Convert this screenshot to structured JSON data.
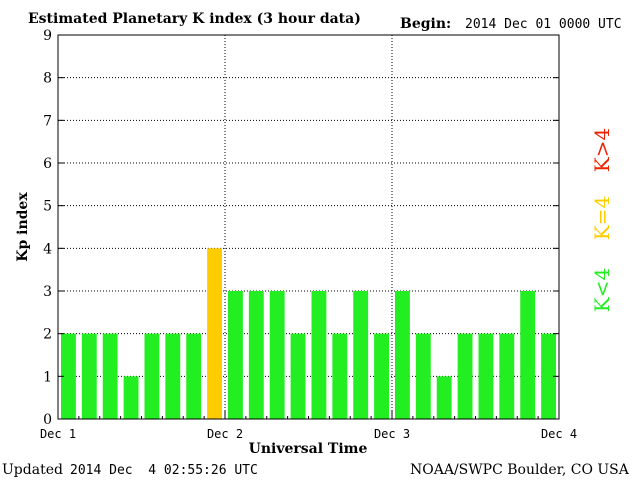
{
  "chart_data": {
    "type": "bar",
    "title": "Estimated Planetary K index (3 hour data)",
    "begin_label": "Begin:",
    "begin_value": "2014 Dec 01 0000 UTC",
    "xlabel": "Universal Time",
    "ylabel": "Kp index",
    "ylim": [
      0,
      9
    ],
    "yticks": [
      "0",
      "1",
      "2",
      "3",
      "4",
      "5",
      "6",
      "7",
      "8",
      "9"
    ],
    "xticks": [
      "Dec 1",
      "Dec 2",
      "Dec 3",
      "Dec 4"
    ],
    "values": [
      2,
      2,
      2,
      1,
      2,
      2,
      2,
      4,
      3,
      3,
      3,
      2,
      3,
      2,
      3,
      2,
      3,
      2,
      1,
      2,
      2,
      2,
      3,
      2
    ],
    "bar_width_hours": 3,
    "grid": true,
    "legend": [
      {
        "label": "K<4",
        "color": "#22ee22"
      },
      {
        "label": "K=4",
        "color": "#ffcc00"
      },
      {
        "label": "K>4",
        "color": "#ee2200"
      }
    ],
    "colors": {
      "low": "#22ee22",
      "equal": "#ffcc00",
      "high": "#ee2200"
    }
  },
  "footer": {
    "updated_label": "Updated",
    "updated_value": "2014 Dec  4 02:55:26 UTC",
    "source": "NOAA/SWPC Boulder, CO USA"
  }
}
